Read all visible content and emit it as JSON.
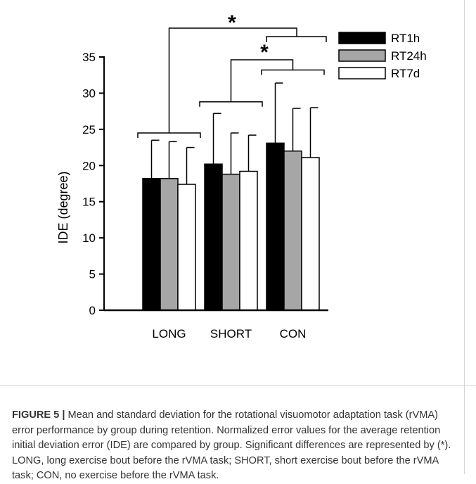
{
  "chart_data": {
    "type": "bar",
    "ylabel": "IDE (degree)",
    "xlabel": "",
    "ylim": [
      0,
      35
    ],
    "yticks": [
      0,
      5,
      10,
      15,
      20,
      25,
      30,
      35
    ],
    "categories": [
      "LONG",
      "SHORT",
      "CON"
    ],
    "series": [
      {
        "name": "RT1h",
        "color": "#000000",
        "values": [
          18.2,
          20.2,
          23.1
        ],
        "errors": [
          5.3,
          7.0,
          8.3
        ]
      },
      {
        "name": "RT24h",
        "color": "#a6a6a6",
        "values": [
          18.2,
          18.8,
          22.0
        ],
        "errors": [
          5.1,
          5.7,
          5.9
        ]
      },
      {
        "name": "RT7d",
        "color": "#ffffff",
        "values": [
          17.4,
          19.2,
          21.1
        ],
        "errors": [
          5.1,
          5.0,
          6.9
        ]
      }
    ],
    "legend_position": "top-right",
    "significance": [
      {
        "from": "LONG",
        "to": "SHORT+CON",
        "marker": "*"
      },
      {
        "from": "SHORT",
        "to": "CON",
        "marker": "*"
      }
    ]
  },
  "caption": {
    "label": "FIGURE 5 |",
    "text": " Mean and standard deviation for the rotational visuomotor adaptation task (rVMA) error performance by group during retention. Normalized error values for the average retention initial deviation error (IDE) are compared by group. Significant differences are represented by (*). LONG, long exercise bout before the rVMA task; SHORT, short exercise bout before the rVMA task; CON, no exercise before the rVMA task."
  }
}
